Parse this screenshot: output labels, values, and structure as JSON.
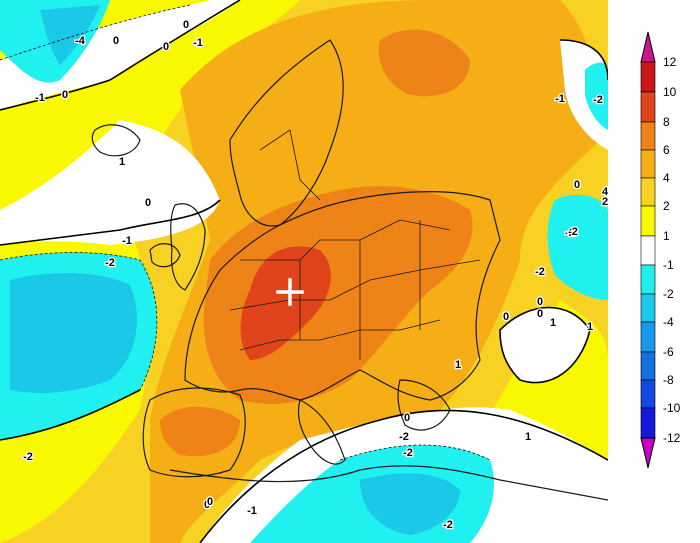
{
  "map": {
    "region": "Europe",
    "marker": "white-cross",
    "contour_labels": [
      {
        "text": "-4"
      },
      {
        "text": "0"
      },
      {
        "text": "-1"
      },
      {
        "text": "0"
      },
      {
        "text": "0"
      },
      {
        "text": "-1"
      },
      {
        "text": "1"
      },
      {
        "text": "0"
      },
      {
        "text": "-1"
      },
      {
        "text": "-2"
      },
      {
        "text": "-2"
      },
      {
        "text": "0"
      },
      {
        "text": "-1"
      },
      {
        "text": "-2"
      },
      {
        "text": "-2"
      },
      {
        "text": "0"
      },
      {
        "text": "-2"
      },
      {
        "text": "-2"
      },
      {
        "text": "-2"
      },
      {
        "text": "1"
      },
      {
        "text": "0"
      },
      {
        "text": "0"
      },
      {
        "text": "1"
      },
      {
        "text": "-2"
      },
      {
        "text": "-1"
      },
      {
        "text": "1"
      },
      {
        "text": "0"
      },
      {
        "text": "1"
      },
      {
        "text": "0"
      },
      {
        "text": "-2"
      },
      {
        "text": "0"
      },
      {
        "text": "2"
      },
      {
        "text": "4"
      },
      {
        "text": "0"
      }
    ]
  },
  "legend": {
    "ticks": [
      "12",
      "10",
      "8",
      "6",
      "4",
      "2",
      "1",
      "-1",
      "-2",
      "-4",
      "-6",
      "-8",
      "-10",
      "-12"
    ],
    "colors": {
      "c12": "#c8188a",
      "c10": "#c81818",
      "c8": "#e0441a",
      "c6": "#ee8418",
      "c4": "#f6ae16",
      "c2": "#f8d222",
      "c1": "#f8f800",
      "c0": "#ffffff",
      "cm1": "#20f0f0",
      "cm2": "#1ac8e8",
      "cm4": "#1898e8",
      "cm6": "#1470e0",
      "cm8": "#1448e0",
      "cm10": "#1418d8",
      "cm12": "#c800c8"
    }
  }
}
